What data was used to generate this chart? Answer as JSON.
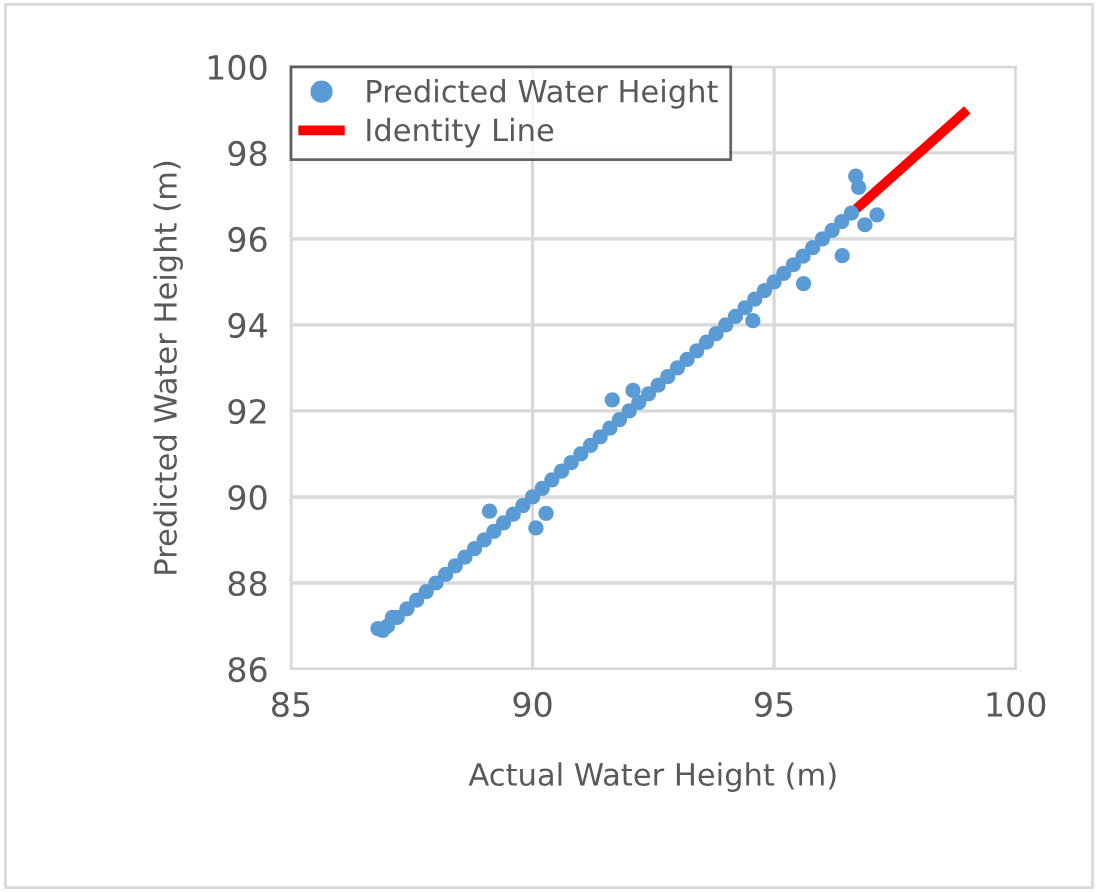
{
  "chart_data": {
    "type": "scatter",
    "xlabel": "Actual Water Height (m)",
    "ylabel": "Predicted Water Height (m)",
    "xlim": [
      85,
      100
    ],
    "xticks": [
      85,
      90,
      95,
      100
    ],
    "ylim": [
      86,
      100
    ],
    "yticks": [
      86,
      88,
      90,
      92,
      94,
      96,
      98,
      100
    ],
    "grid": true,
    "legend": "top left",
    "series": [
      {
        "name": "Identity Line",
        "type": "line",
        "color": "#ff0000",
        "x": [
          96.7,
          99
        ],
        "values": [
          96.7,
          99
        ]
      },
      {
        "name": "Predicted Water Height",
        "marker": "circle",
        "color": "#5b9bd5",
        "x": [
          86.8,
          86.9,
          87.0,
          87.1,
          87.2,
          87.4,
          87.6,
          87.8,
          88.0,
          88.2,
          88.4,
          88.6,
          88.8,
          89.0,
          89.11,
          89.2,
          89.4,
          89.6,
          89.8,
          90.0,
          90.07,
          90.2,
          90.28,
          90.4,
          90.6,
          90.8,
          91.0,
          91.2,
          91.4,
          91.65,
          91.6,
          91.8,
          92.0,
          92.08,
          92.2,
          92.4,
          92.6,
          92.8,
          93.0,
          93.2,
          93.4,
          93.6,
          93.8,
          94.0,
          94.2,
          94.4,
          94.56,
          94.6,
          94.8,
          95.0,
          95.2,
          95.4,
          95.61,
          95.6,
          95.8,
          96.0,
          96.2,
          96.41,
          96.4,
          96.6,
          96.69,
          96.75,
          96.88,
          97.13
        ],
        "values": [
          86.94,
          86.9,
          87.0,
          87.2,
          87.2,
          87.4,
          87.6,
          87.8,
          88.0,
          88.2,
          88.4,
          88.6,
          88.8,
          89.0,
          89.67,
          89.2,
          89.4,
          89.6,
          89.8,
          90.0,
          89.28,
          90.2,
          89.62,
          90.4,
          90.6,
          90.8,
          91.0,
          91.2,
          91.4,
          92.26,
          91.6,
          91.8,
          92.0,
          92.48,
          92.2,
          92.4,
          92.6,
          92.8,
          93.0,
          93.2,
          93.4,
          93.6,
          93.8,
          94.0,
          94.2,
          94.4,
          94.1,
          94.6,
          94.8,
          95.0,
          95.2,
          95.4,
          94.96,
          95.6,
          95.8,
          96.0,
          96.2,
          95.61,
          96.4,
          96.6,
          97.46,
          97.2,
          96.33,
          96.56
        ]
      }
    ]
  }
}
